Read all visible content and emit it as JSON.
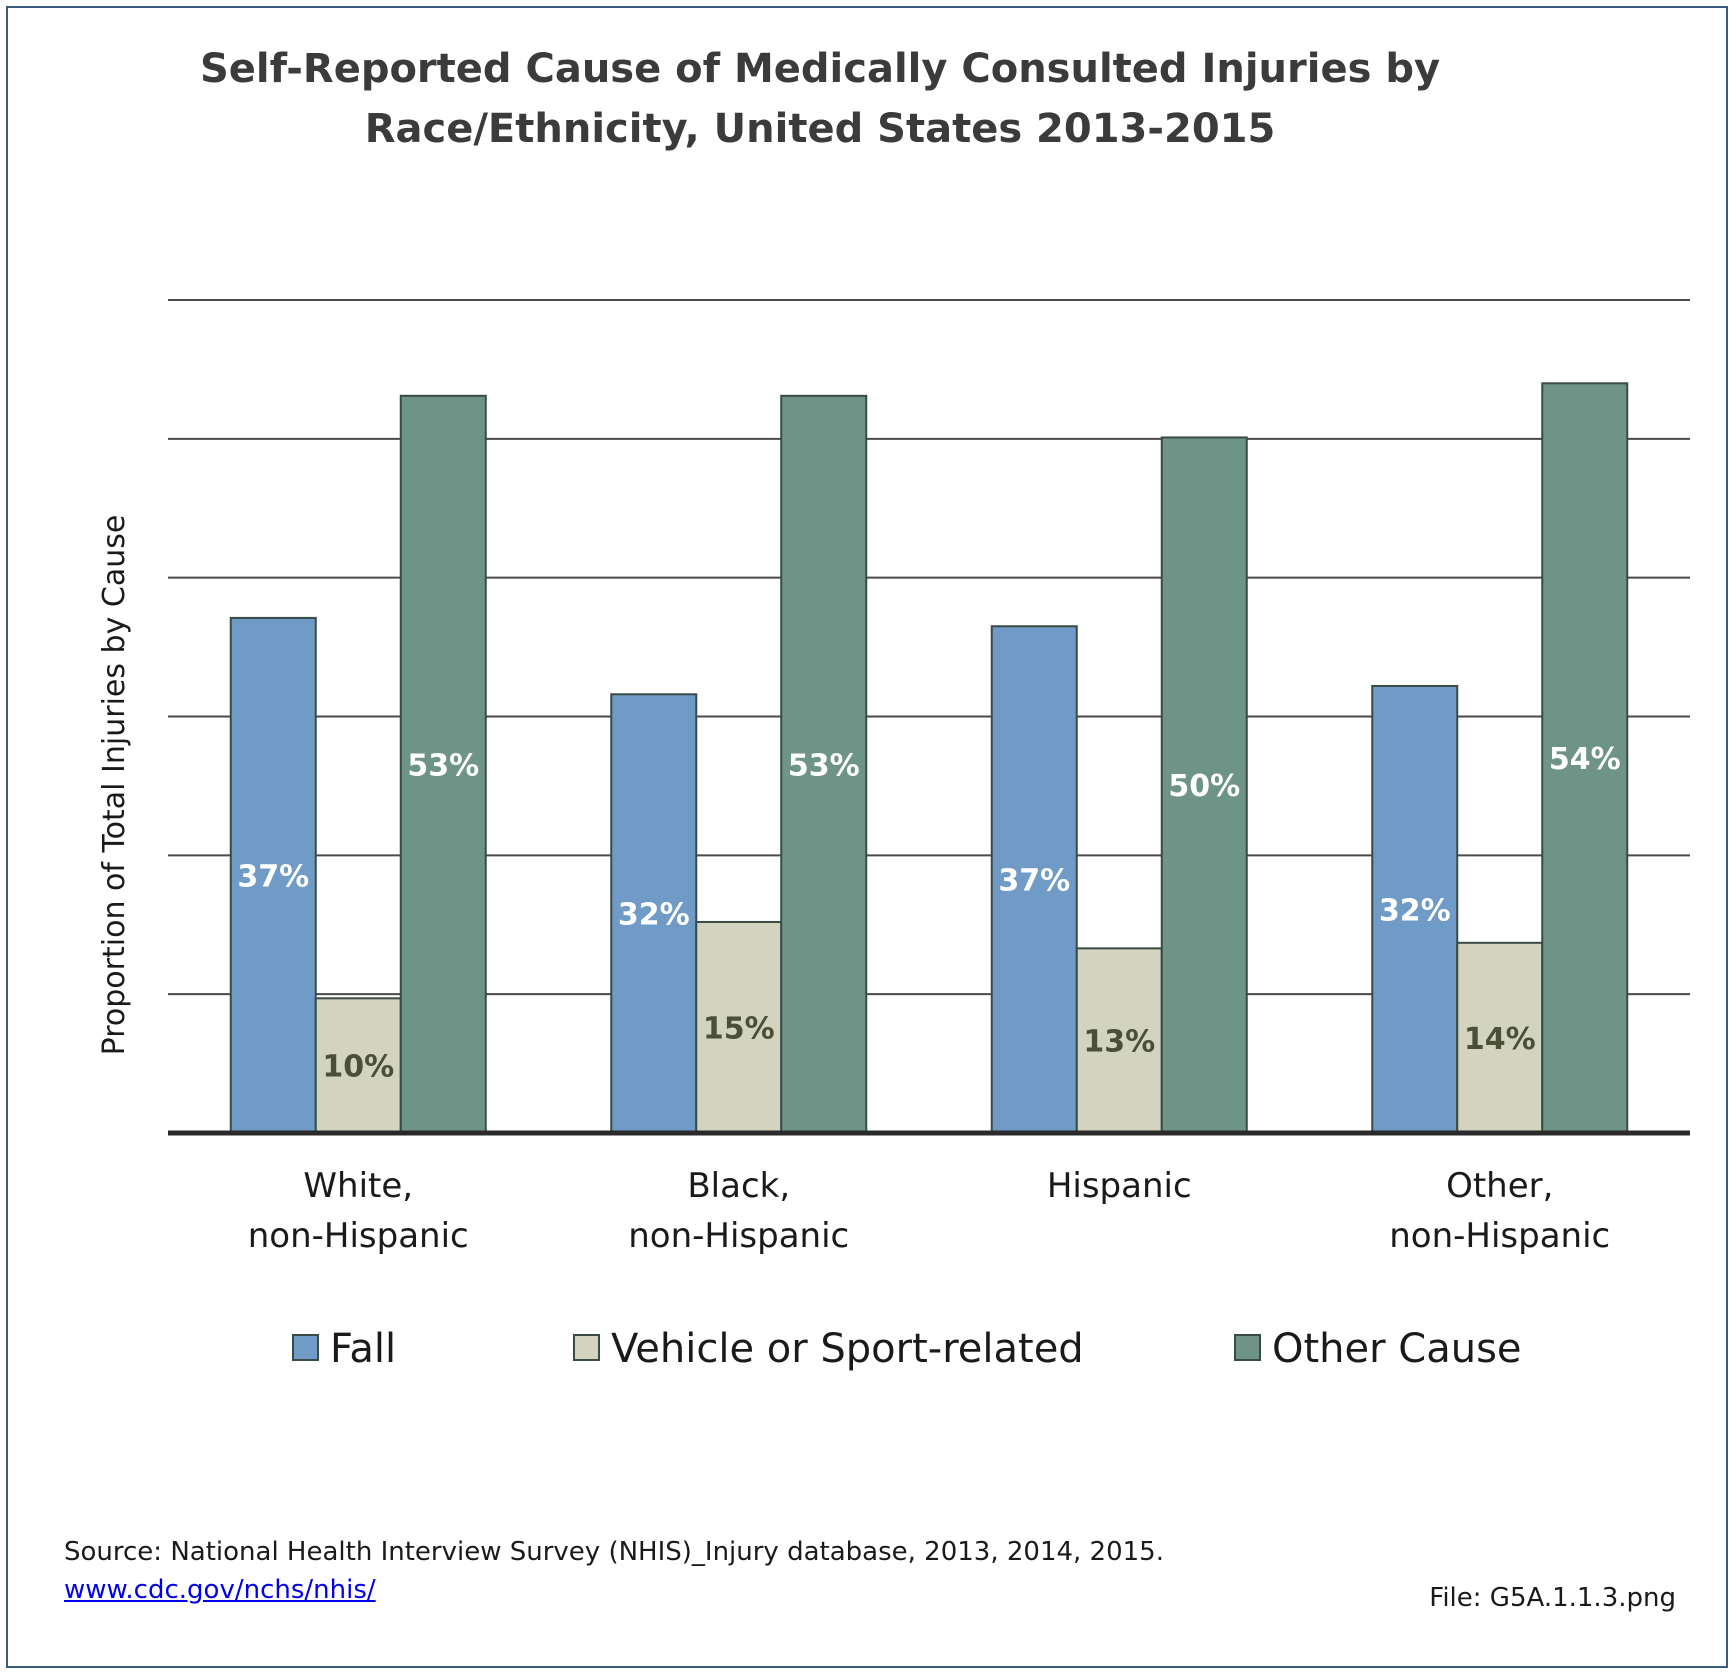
{
  "chart_data": {
    "type": "bar",
    "title_lines": [
      "Self-Reported Cause of Medically Consulted Injuries by",
      "Race/Ethnicity, United States 2013-2015"
    ],
    "ylabel": "Proportion of Total Injuries by Cause",
    "xlabel": "",
    "ylim": [
      0,
      60
    ],
    "grid": true,
    "legend_position": "bottom",
    "categories": [
      [
        "White,",
        "non-Hispanic"
      ],
      [
        "Black,",
        "non-Hispanic"
      ],
      [
        "Hispanic"
      ],
      [
        "Other,",
        "non-Hispanic"
      ]
    ],
    "series": [
      {
        "name": "Fall",
        "values": [
          37,
          32,
          37,
          32
        ],
        "actual": [
          37.1,
          31.6,
          36.5,
          32.2
        ],
        "labels": [
          "37%",
          "32%",
          "37%",
          "32%"
        ],
        "color": "#6f9bc6",
        "label_color": "#ffffff"
      },
      {
        "name": "Vehicle or Sport-related",
        "values": [
          10,
          15,
          13,
          14
        ],
        "actual": [
          9.7,
          15.2,
          13.3,
          13.7
        ],
        "labels": [
          "10%",
          "15%",
          "13%",
          "14%"
        ],
        "color": "#d3d4bf",
        "label_color": "#4a4f35"
      },
      {
        "name": "Other Cause",
        "values": [
          53,
          53,
          50,
          54
        ],
        "actual": [
          53.1,
          53.1,
          50.1,
          54.0
        ],
        "labels": [
          "53%",
          "53%",
          "50%",
          "54%"
        ],
        "color": "#6e9488",
        "label_color": "#ffffff"
      }
    ],
    "colors": {
      "border": "#3a4a44",
      "grid": "#4a4a4a",
      "frame": "#3a5d7e"
    }
  },
  "footer": {
    "source_text": "Source: National Health Interview Survey (NHIS)_Injury database, 2013, 2014, 2015.",
    "source_link": "www.cdc.gov/nchs/nhis/",
    "file_label": "File: G5A.1.1.3.png"
  }
}
